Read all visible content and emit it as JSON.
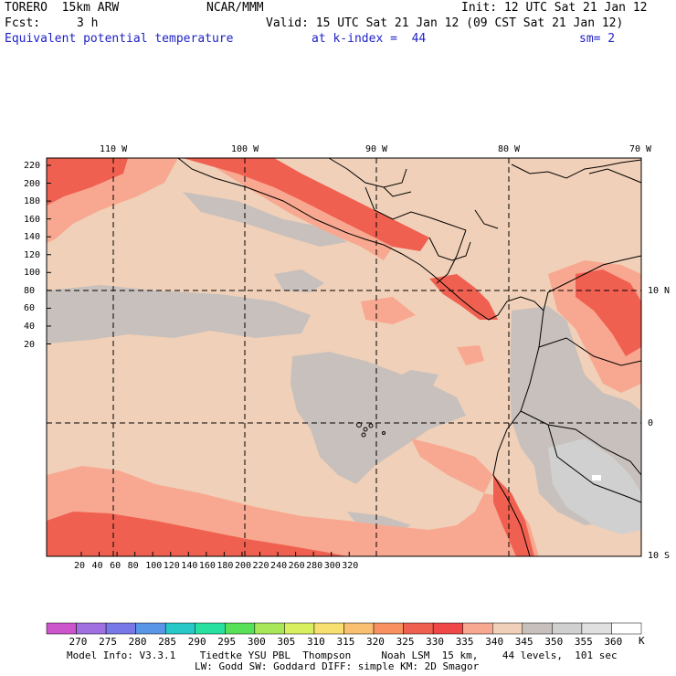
{
  "header": {
    "model": "TORERO  15km ARW",
    "org": "NCAR/MMM",
    "init": "Init: 12 UTC Sat 21 Jan 12",
    "fcst_label": "Fcst:",
    "fcst_value": "3 h",
    "valid": "Valid: 15 UTC Sat 21 Jan 12 (09 CST Sat 21 Jan 12)",
    "field": "Equivalent potential temperature",
    "level": "at k-index =  44",
    "smooth": "sm= 2"
  },
  "map_axes": {
    "top_lon_labels": [
      "110 W",
      "100 W",
      "90 W",
      "80 W",
      "70 W"
    ],
    "right_lat_labels": [
      "10 N",
      "0",
      "10 S"
    ],
    "y_ticks": [
      "220",
      "200",
      "180",
      "160",
      "140",
      "120",
      "100",
      "80",
      "60",
      "40",
      "20"
    ],
    "x_ticks": [
      "20",
      "40",
      "60",
      "80",
      "100",
      "120",
      "140",
      "160",
      "180",
      "200",
      "220",
      "240",
      "260",
      "280",
      "300",
      "320"
    ]
  },
  "colorbar": {
    "unit": "K",
    "labels": [
      "270",
      "275",
      "280",
      "285",
      "290",
      "295",
      "300",
      "305",
      "310",
      "315",
      "320",
      "325",
      "330",
      "335",
      "340",
      "345",
      "350",
      "355",
      "360"
    ],
    "colors": [
      "#cc55cc",
      "#a070e0",
      "#7878e8",
      "#5a96e8",
      "#28c8c8",
      "#28e0a0",
      "#58e058",
      "#a8e858",
      "#d8f060",
      "#f8e070",
      "#f8c070",
      "#f89060",
      "#f06050",
      "#f04848",
      "#f8a890",
      "#f0d0b8",
      "#c8c0bc",
      "#d0d0d0",
      "#e0e0e0",
      "#ffffff"
    ]
  },
  "colors": {
    "map_bg": "#f0d0b8",
    "gray_region": "#c8c0bc",
    "orange_region": "#f8a890",
    "red_region": "#f06050",
    "light_gray_region": "#d0d0d0",
    "title_blue": "#1f22c8"
  },
  "footer": {
    "line1": "Model Info: V3.3.1    Tiedtke YSU PBL  Thompson     Noah LSM  15 km,    44 levels,  101 sec",
    "line2": "LW: Godd SW: Goddard DIFF: simple KM: 2D Smagor"
  }
}
